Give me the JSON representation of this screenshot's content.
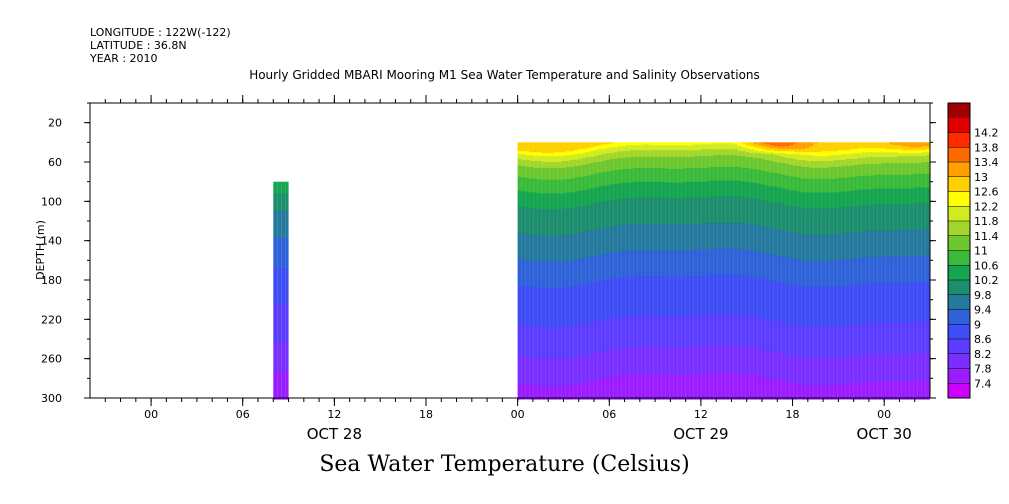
{
  "header": {
    "longitude": "LONGITUDE : 122W(-122)",
    "latitude": "LATITUDE : 36.8N",
    "year": "YEAR : 2010"
  },
  "chart_data": {
    "type": "heatmap",
    "title": "Hourly Gridded MBARI Mooring M1 Sea Water Temperature and Salinity Observations",
    "bottom_title": "Sea Water Temperature (Celsius)",
    "ylabel": "DEPTH (m)",
    "xlabel": "",
    "x_unit": "hours since OCT 28 00:00",
    "xlim": [
      -4,
      51
    ],
    "ylim": [
      300,
      0
    ],
    "y_ticks": [
      20,
      60,
      100,
      140,
      180,
      220,
      260,
      300
    ],
    "x_ticks": [
      {
        "hour": 0,
        "label": "00"
      },
      {
        "hour": 6,
        "label": "06"
      },
      {
        "hour": 12,
        "label": "12"
      },
      {
        "hour": 18,
        "label": "18"
      },
      {
        "hour": 24,
        "label": "00"
      },
      {
        "hour": 30,
        "label": "06"
      },
      {
        "hour": 36,
        "label": "12"
      },
      {
        "hour": 42,
        "label": "18"
      },
      {
        "hour": 48,
        "label": "00"
      }
    ],
    "date_labels": [
      {
        "hour": 12,
        "label": "OCT 28"
      },
      {
        "hour": 36,
        "label": "OCT 29"
      },
      {
        "hour": 48,
        "label": "OCT 30"
      }
    ],
    "colorbar": {
      "levels": [
        7.4,
        7.8,
        8.2,
        8.6,
        9,
        9.4,
        9.8,
        10.2,
        10.6,
        11,
        11.4,
        11.8,
        12.2,
        12.6,
        13,
        13.4,
        13.8,
        14.2
      ],
      "colors": [
        "#cc00ff",
        "#9a1cff",
        "#7a2eff",
        "#5c3dff",
        "#3e4df5",
        "#2f62d8",
        "#25799e",
        "#1c8e6e",
        "#15a550",
        "#3aba3a",
        "#6cc82e",
        "#a2d62a",
        "#d2ea22",
        "#ffff00",
        "#ffd000",
        "#ffa000",
        "#ff6a00",
        "#ff2a00",
        "#e00000",
        "#a00000"
      ]
    },
    "series": [
      {
        "name": "segment-oct28",
        "hours": [
          8,
          9
        ],
        "depths": [
          80,
          300
        ],
        "profile_depths": [
          80,
          100,
          140,
          180,
          220,
          260,
          280,
          300
        ],
        "profile_temps": [
          10.4,
          9.9,
          9.3,
          8.8,
          8.4,
          8.0,
          7.6,
          7.4
        ]
      },
      {
        "name": "segment-oct29",
        "hours": [
          24,
          51
        ],
        "depths": [
          40,
          300
        ],
        "profile_depths": [
          40,
          45,
          50,
          60,
          80,
          100,
          140,
          180,
          220,
          260,
          280,
          300
        ],
        "profile_temps": [
          12.8,
          12.3,
          11.9,
          11.3,
          10.7,
          10.2,
          9.6,
          9.0,
          8.6,
          8.1,
          7.8,
          7.5
        ],
        "surface_warm_spots": [
          {
            "hour": 41,
            "temp": 13.8
          },
          {
            "hour": 50,
            "temp": 13.3
          },
          {
            "hour": 25,
            "temp": 13.0
          }
        ]
      }
    ]
  }
}
